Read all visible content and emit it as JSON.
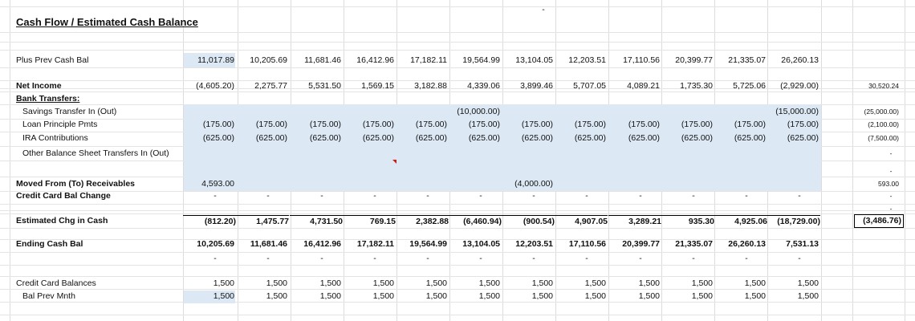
{
  "title": "Cash Flow / Estimated Cash Balance",
  "top_mark": "-",
  "rows": {
    "prev_cash_bal": {
      "label": "Plus Prev Cash Bal",
      "values": [
        "11,017.89",
        "10,205.69",
        "11,681.46",
        "16,412.96",
        "17,182.11",
        "19,564.99",
        "13,104.05",
        "12,203.51",
        "17,110.56",
        "20,399.77",
        "21,335.07",
        "26,260.13"
      ]
    },
    "net_income": {
      "label": "Net Income",
      "values": [
        "(4,605.20)",
        "2,275.77",
        "5,531.50",
        "1,569.15",
        "3,182.88",
        "4,339.06",
        "3,899.46",
        "5,707.05",
        "4,089.21",
        "1,735.30",
        "5,725.06",
        "(2,929.00)"
      ],
      "total": "30,520.24"
    },
    "bank_transfers": {
      "label": "Bank Transfers:"
    },
    "savings_transfer": {
      "label": "Savings Transfer In (Out)",
      "values": [
        "",
        "",
        "",
        "",
        "",
        "(10,000.00)",
        "",
        "",
        "",
        "",
        "",
        "(15,000.00)"
      ],
      "total": "(25,000.00)"
    },
    "loan_principle": {
      "label": "Loan Principle Pmts",
      "values": [
        "(175.00)",
        "(175.00)",
        "(175.00)",
        "(175.00)",
        "(175.00)",
        "(175.00)",
        "(175.00)",
        "(175.00)",
        "(175.00)",
        "(175.00)",
        "(175.00)",
        "(175.00)"
      ],
      "total": "(2,100.00)"
    },
    "ira": {
      "label": "IRA Contributions",
      "values": [
        "(625.00)",
        "(625.00)",
        "(625.00)",
        "(625.00)",
        "(625.00)",
        "(625.00)",
        "(625.00)",
        "(625.00)",
        "(625.00)",
        "(625.00)",
        "(625.00)",
        "(625.00)"
      ],
      "total": "(7,500.00)"
    },
    "other_bs": {
      "label": "Other Balance Sheet Transfers In (Out)",
      "total": "-"
    },
    "blank_total": "-",
    "moved_receivables": {
      "label": "Moved From (To) Receivables",
      "values": [
        "4,593.00",
        "",
        "",
        "",
        "",
        "",
        "(4,000.00)",
        "",
        "",
        "",
        "",
        ""
      ],
      "total": "593.00"
    },
    "cc_bal_change": {
      "label": "Credit Card Bal Change",
      "values": [
        "-",
        "-",
        "-",
        "-",
        "-",
        "-",
        "-",
        "-",
        "-",
        "-",
        "-",
        "-"
      ],
      "total": "-"
    },
    "pre_est_total": "-",
    "est_chg_cash": {
      "label": "Estimated Chg in Cash",
      "values": [
        "(812.20)",
        "1,475.77",
        "4,731.50",
        "769.15",
        "2,382.88",
        "(6,460.94)",
        "(900.54)",
        "4,907.05",
        "3,289.21",
        "935.30",
        "4,925.06",
        "(18,729.00)"
      ],
      "total": "(3,486.76)"
    },
    "ending_cash": {
      "label": "Ending Cash Bal",
      "values": [
        "10,205.69",
        "11,681.46",
        "16,412.96",
        "17,182.11",
        "19,564.99",
        "13,104.05",
        "12,203.51",
        "17,110.56",
        "20,399.77",
        "21,335.07",
        "26,260.13",
        "7,531.13"
      ]
    },
    "dash_row": {
      "values": [
        "-",
        "-",
        "-",
        "-",
        "-",
        "-",
        "-",
        "-",
        "-",
        "-",
        "-",
        "-"
      ]
    },
    "cc_balances": {
      "label": "Credit Card Balances",
      "values": [
        "1,500",
        "1,500",
        "1,500",
        "1,500",
        "1,500",
        "1,500",
        "1,500",
        "1,500",
        "1,500",
        "1,500",
        "1,500",
        "1,500"
      ]
    },
    "bal_prev_mnth": {
      "label": "Bal Prev Mnth",
      "values": [
        "1,500",
        "1,500",
        "1,500",
        "1,500",
        "1,500",
        "1,500",
        "1,500",
        "1,500",
        "1,500",
        "1,500",
        "1,500",
        "1,500"
      ]
    }
  },
  "colors": {
    "band": "#dce9f5",
    "grid": "#dcdcdc",
    "comment_flag": "#d01818"
  }
}
